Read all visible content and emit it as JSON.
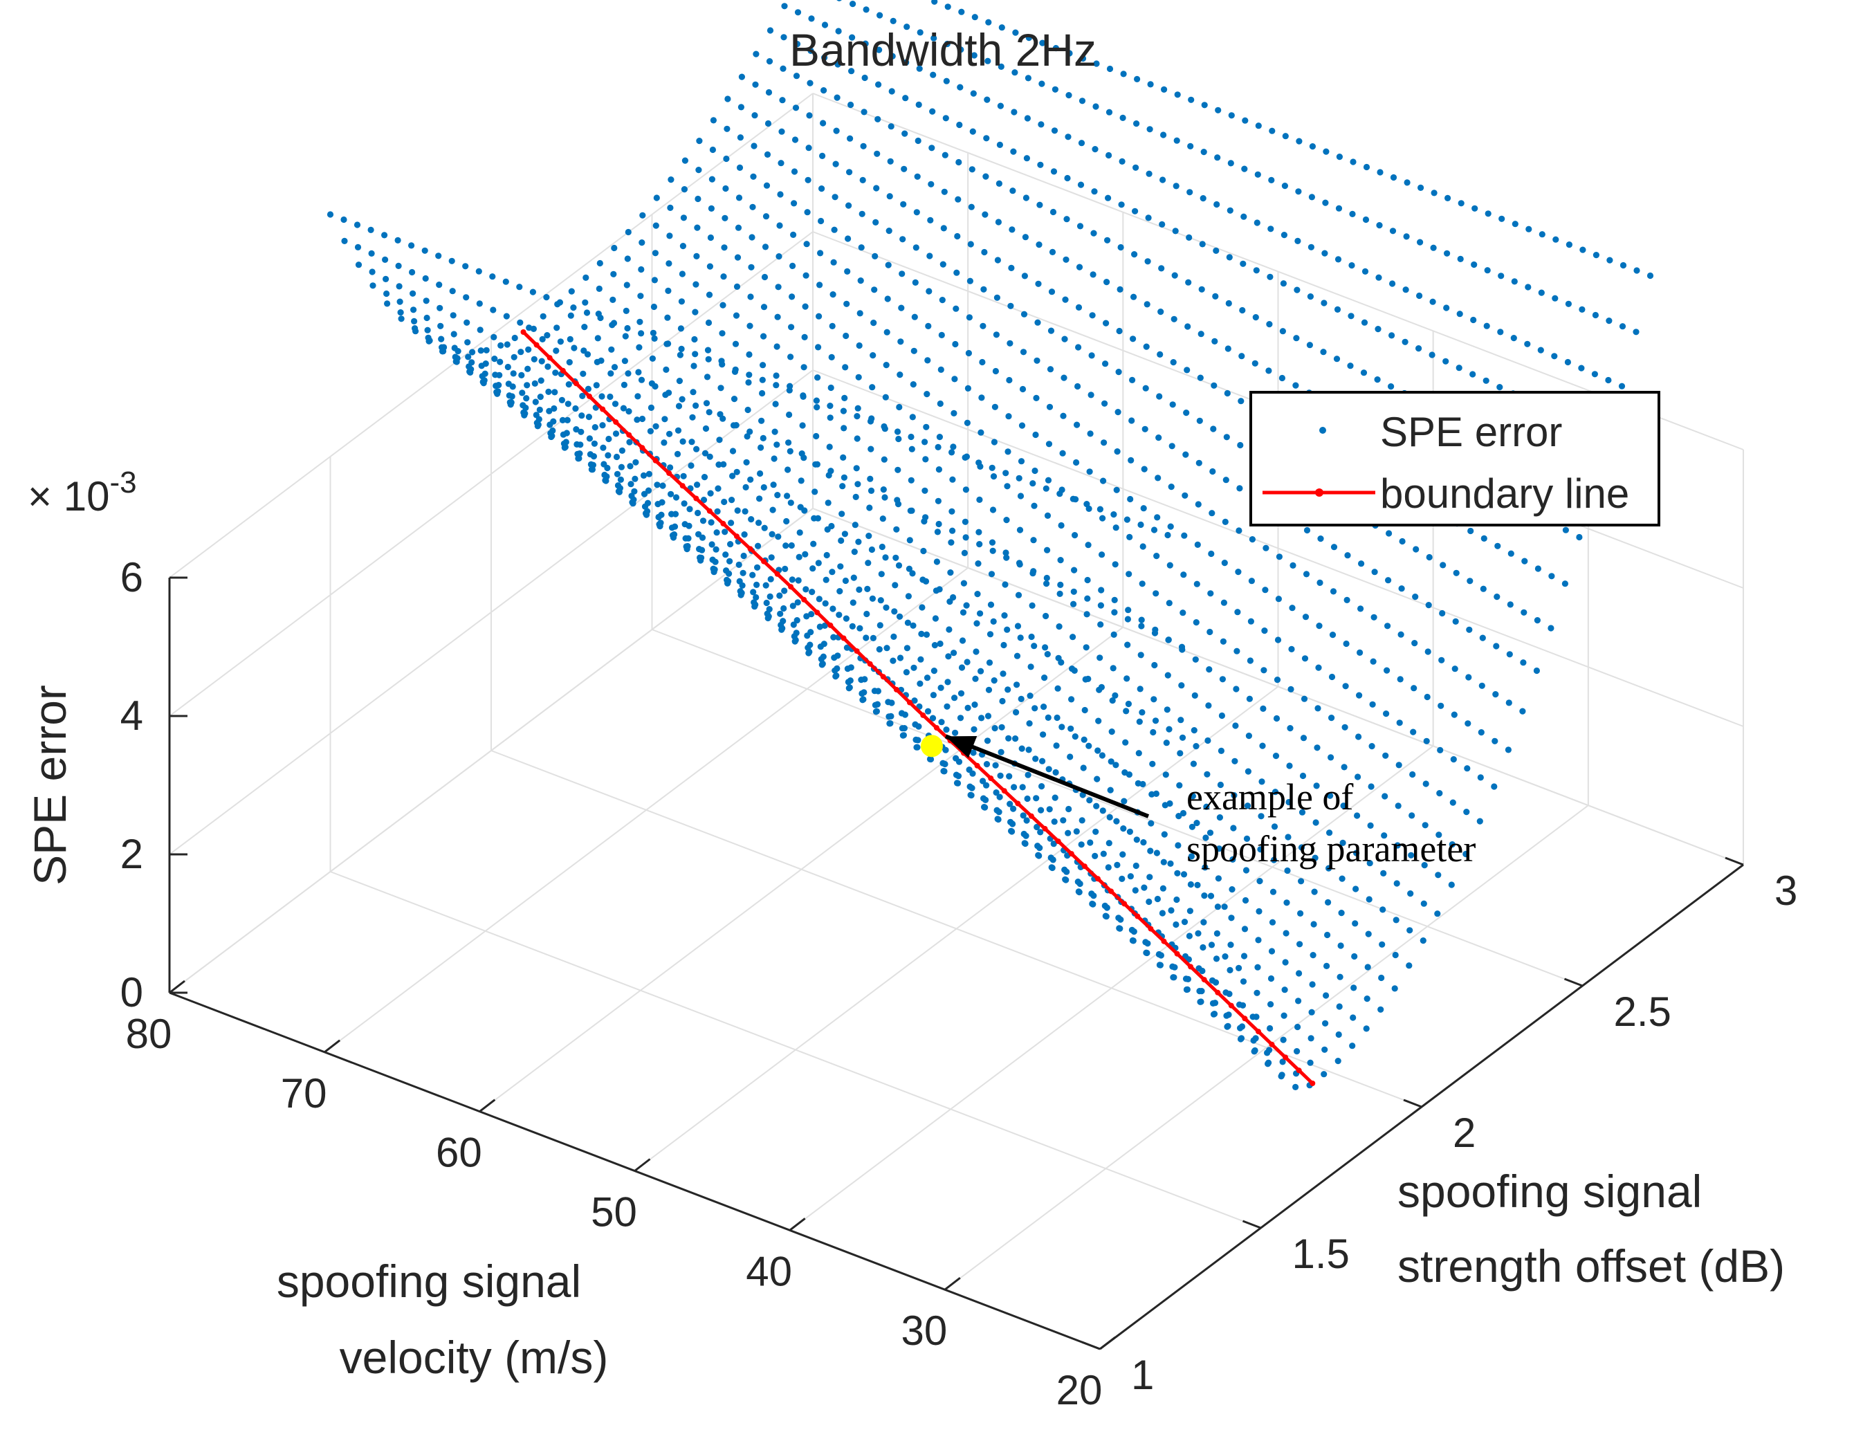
{
  "chart_data": {
    "type": "scatter3d",
    "title": "Bandwidth 2Hz",
    "xlabel": [
      "spoofing signal",
      "velocity (m/s)"
    ],
    "ylabel": [
      "spoofing signal",
      "strength offset (dB)"
    ],
    "zlabel": "SPE error",
    "z_exponent_label": "× 10",
    "z_exponent_power": "-3",
    "xlim": [
      20,
      80
    ],
    "ylim": [
      1,
      3
    ],
    "zlim": [
      0,
      6
    ],
    "z_scale": 0.001,
    "xticks": [
      "20",
      "30",
      "40",
      "50",
      "60",
      "70",
      "80"
    ],
    "yticks": [
      "1",
      "1.5",
      "2",
      "2.5",
      "3"
    ],
    "zticks": [
      "0",
      "2",
      "4",
      "6"
    ],
    "grid": true,
    "series": [
      {
        "name": "SPE error",
        "color": "#0072BD",
        "marker": "point",
        "surface_model": {
          "velocity_range": [
            26,
            80
          ],
          "offset_range": [
            1.5,
            3.0
          ],
          "boundary_offset_at_velocity_26": 1.95,
          "boundary_offset_at_velocity_80": 2.1,
          "min_spe_e3_at_velocity_26": 0.0,
          "min_spe_e3_at_velocity_80": 5.7,
          "max_spe_e3_low_offset_side": 9.5,
          "max_spe_e3_high_offset_side": 8.0
        }
      },
      {
        "name": "boundary line",
        "color": "#FF0000",
        "marker": "dot-line",
        "points": [
          {
            "velocity": 26,
            "offset": 1.95,
            "spe_e3": 0.0
          },
          {
            "velocity": 35,
            "offset": 1.97,
            "spe_e3": 1.0
          },
          {
            "velocity": 44,
            "offset": 2.0,
            "spe_e3": 1.9
          },
          {
            "velocity": 53,
            "offset": 2.02,
            "spe_e3": 2.85
          },
          {
            "velocity": 62,
            "offset": 2.05,
            "spe_e3": 3.8
          },
          {
            "velocity": 71,
            "offset": 2.07,
            "spe_e3": 4.75
          },
          {
            "velocity": 80,
            "offset": 2.1,
            "spe_e3": 5.7
          }
        ]
      }
    ],
    "highlight_point": {
      "velocity": 52,
      "offset": 2.02,
      "spe_e3": 2.4,
      "color": "#FFFF00"
    },
    "annotation": [
      "example of",
      "spoofing parameter"
    ],
    "legend": {
      "position": "top-right",
      "entries": [
        "SPE error",
        "boundary line"
      ]
    }
  }
}
